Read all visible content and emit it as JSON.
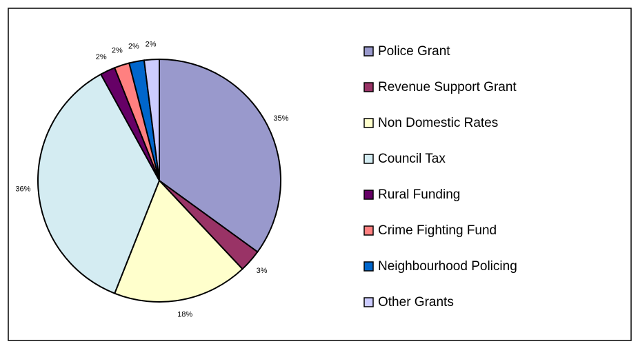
{
  "chart_data": {
    "type": "pie",
    "categories": [
      "Police Grant",
      "Revenue Support Grant",
      "Non Domestic Rates",
      "Council Tax",
      "Rural Funding",
      "Crime Fighting Fund",
      "Neighbourhood Policing",
      "Other Grants"
    ],
    "values": [
      35,
      3,
      18,
      36,
      2,
      2,
      2,
      2
    ],
    "value_labels": [
      "35%",
      "3%",
      "18%",
      "36%",
      "2%",
      "2%",
      "2%",
      "2%"
    ],
    "colors": [
      "#9999cc",
      "#993366",
      "#ffffcc",
      "#d4ecf2",
      "#660066",
      "#ff8080",
      "#0066cc",
      "#ccccff"
    ],
    "legend": "right"
  }
}
